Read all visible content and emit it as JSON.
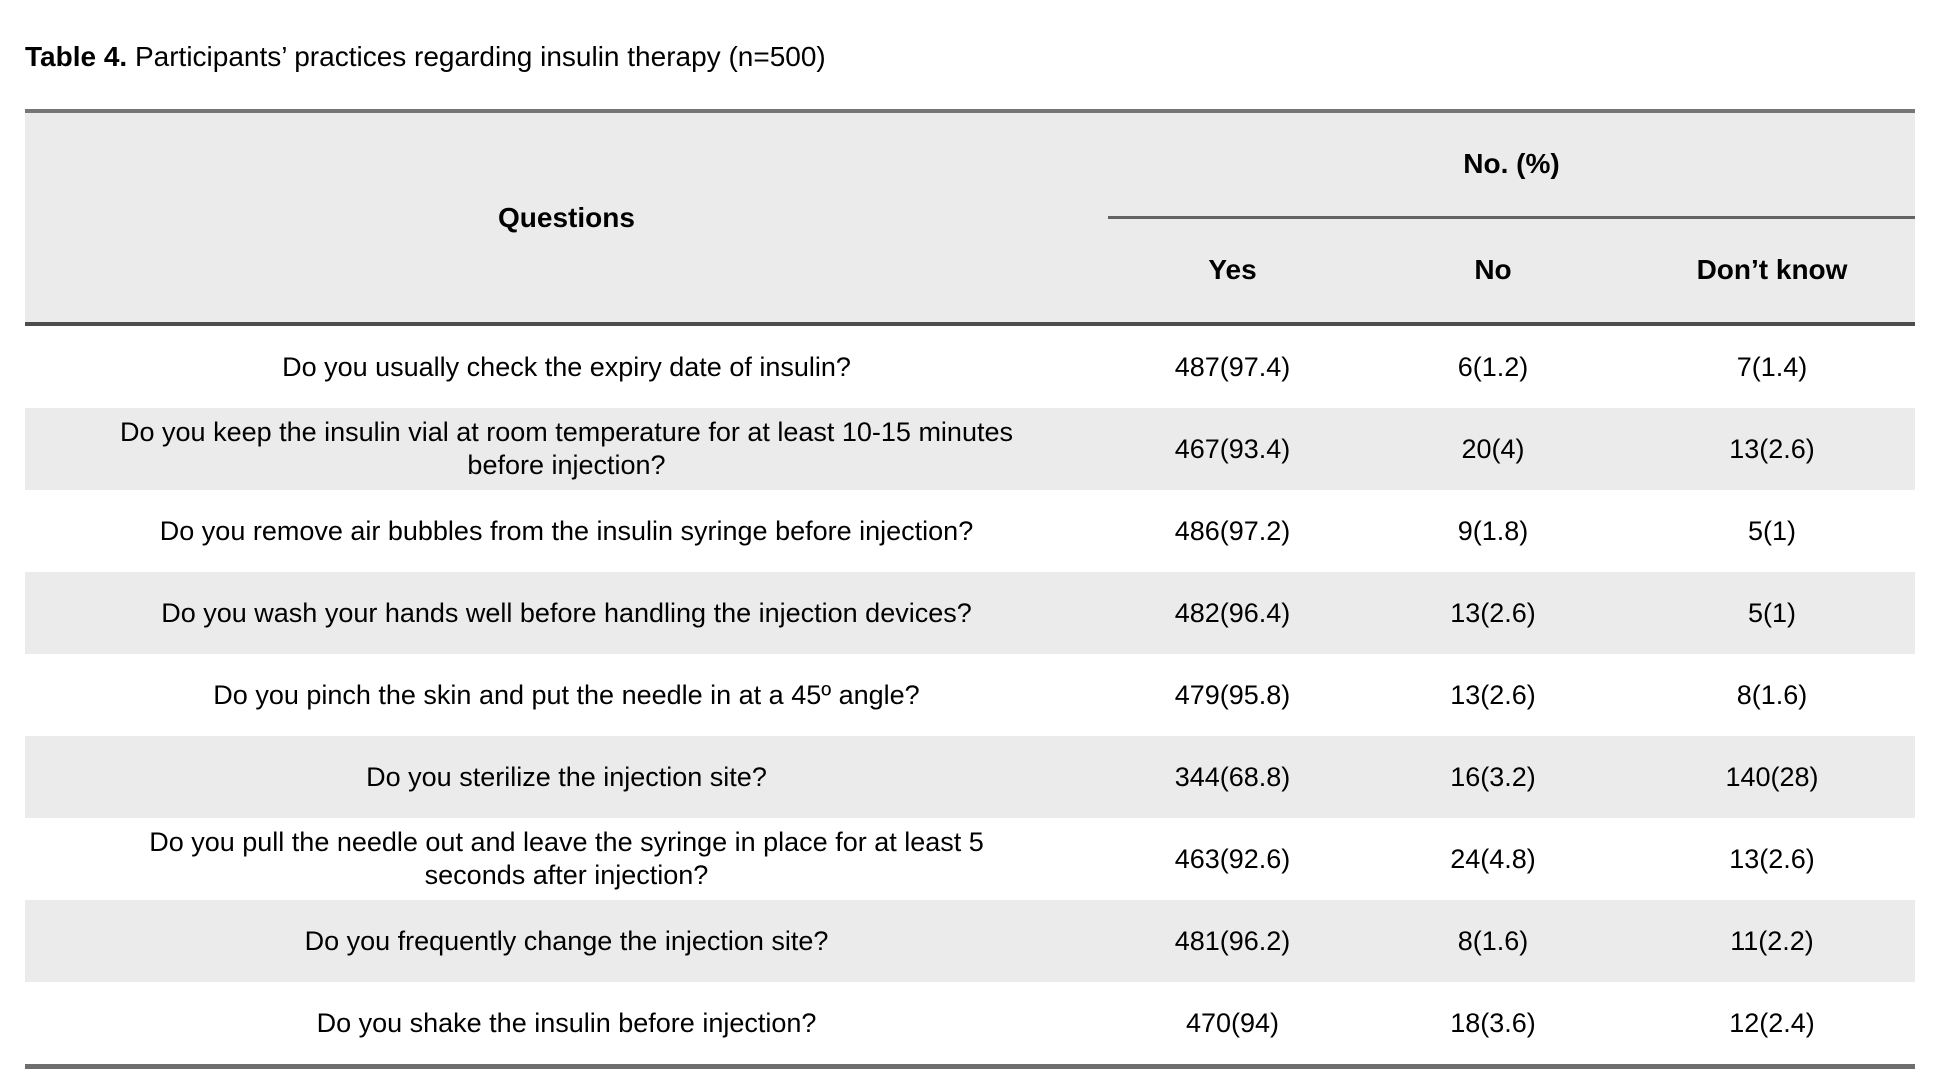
{
  "title": {
    "label": "Table 4.",
    "text": "Participants’ practices regarding insulin therapy (n=500)"
  },
  "table": {
    "header": {
      "questions": "Questions",
      "group": "No. (%)",
      "columns": [
        "Yes",
        "No",
        "Don’t know"
      ]
    },
    "rows": [
      {
        "question": "Do you usually check the expiry date of insulin?",
        "yes": "487(97.4)",
        "no": "6(1.2)",
        "dont_know": "7(1.4)"
      },
      {
        "question": "Do you keep the insulin vial at room temperature for at least 10-15 minutes\nbefore injection?",
        "yes": "467(93.4)",
        "no": "20(4)",
        "dont_know": "13(2.6)"
      },
      {
        "question": "Do you remove air bubbles from the insulin syringe before injection?",
        "yes": "486(97.2)",
        "no": "9(1.8)",
        "dont_know": "5(1)"
      },
      {
        "question": "Do you wash your hands well before handling the injection devices?",
        "yes": "482(96.4)",
        "no": "13(2.6)",
        "dont_know": "5(1)"
      },
      {
        "question": "Do you pinch the skin and put the needle in at a 45º angle?",
        "yes": "479(95.8)",
        "no": "13(2.6)",
        "dont_know": "8(1.6)"
      },
      {
        "question": "Do you sterilize the injection site?",
        "yes": "344(68.8)",
        "no": "16(3.2)",
        "dont_know": "140(28)"
      },
      {
        "question": "Do you pull the needle out and leave the syringe in place for at least 5\nseconds after injection?",
        "yes": "463(92.6)",
        "no": "24(4.8)",
        "dont_know": "13(2.6)"
      },
      {
        "question": "Do you frequently change the injection site?",
        "yes": "481(96.2)",
        "no": "8(1.6)",
        "dont_know": "11(2.2)"
      },
      {
        "question": "Do you shake the insulin before injection?",
        "yes": "470(94)",
        "no": "18(3.6)",
        "dont_know": "12(2.4)"
      }
    ]
  },
  "colors": {
    "row_shade": "#ebebeb",
    "header_bg": "#ebebeb",
    "border_dark": "#4d4d4d",
    "border_mid": "#767676"
  }
}
